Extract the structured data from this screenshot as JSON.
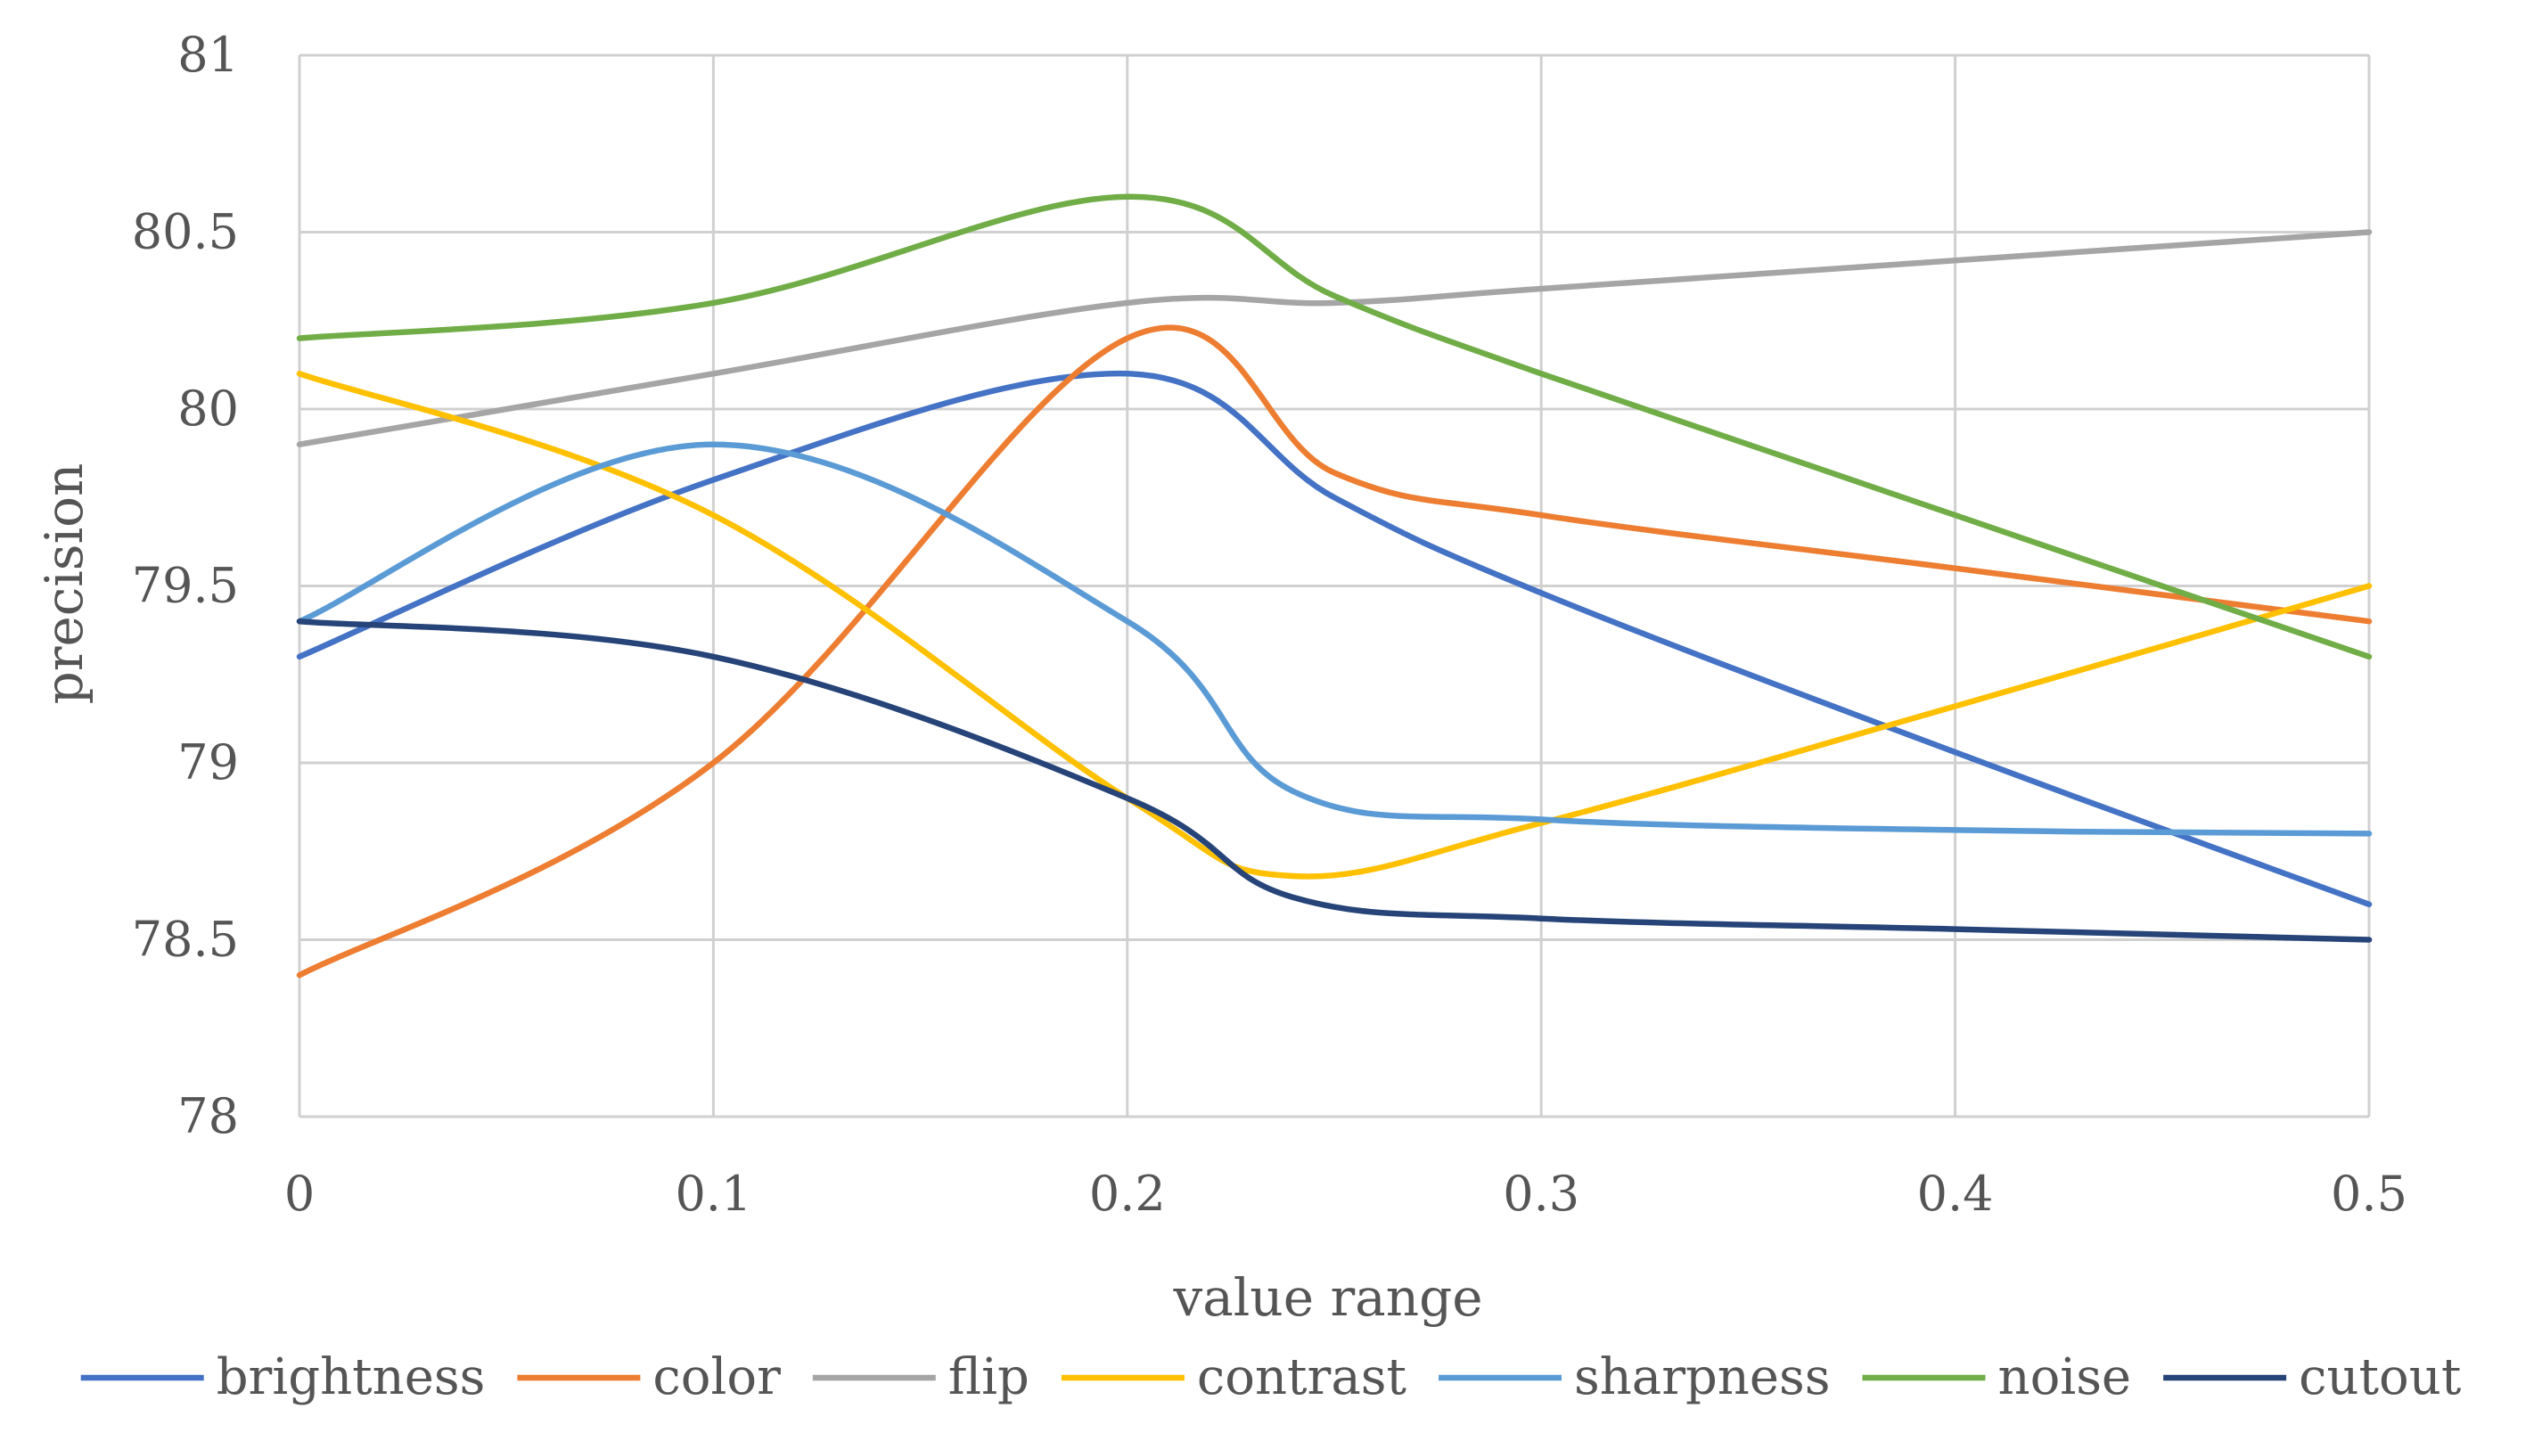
{
  "chart_data": {
    "type": "line",
    "title": "",
    "xlabel": "value range",
    "ylabel": "precision",
    "x": [
      0,
      0.1,
      0.2,
      0.3,
      0.4,
      0.5
    ],
    "x_tick_labels": [
      "0",
      "0.1",
      "0.2",
      "0.3",
      "0.4",
      "0.5"
    ],
    "y_tick_labels": [
      "78",
      "78.5",
      "79",
      "79.5",
      "80",
      "80.5",
      "81"
    ],
    "y_ticks": [
      78,
      78.5,
      79,
      79.5,
      80,
      80.5,
      81
    ],
    "xlim": [
      0,
      0.5
    ],
    "ylim": [
      78,
      81
    ],
    "grid": true,
    "legend_position": "bottom",
    "series": [
      {
        "name": "brightness",
        "color": "#4472C4",
        "values": [
          [
            0,
            79.3
          ],
          [
            0.1,
            79.8
          ],
          [
            0.2,
            80.1
          ],
          [
            0.25,
            79.75
          ],
          [
            0.3,
            79.48
          ],
          [
            0.4,
            79.03
          ],
          [
            0.5,
            78.6
          ]
        ]
      },
      {
        "name": "color",
        "color": "#ED7D31",
        "values": [
          [
            0,
            78.4
          ],
          [
            0.1,
            79.0
          ],
          [
            0.2,
            80.2
          ],
          [
            0.25,
            79.82
          ],
          [
            0.3,
            79.7
          ],
          [
            0.4,
            79.55
          ],
          [
            0.5,
            79.4
          ]
        ]
      },
      {
        "name": "flip",
        "color": "#A5A5A5",
        "values": [
          [
            0,
            79.9
          ],
          [
            0.1,
            80.1
          ],
          [
            0.2,
            80.3
          ],
          [
            0.25,
            80.3
          ],
          [
            0.3,
            80.34
          ],
          [
            0.4,
            80.42
          ],
          [
            0.5,
            80.5
          ]
        ]
      },
      {
        "name": "contrast",
        "color": "#FFC000",
        "values": [
          [
            0,
            80.1
          ],
          [
            0.1,
            79.7
          ],
          [
            0.2,
            78.9
          ],
          [
            0.24,
            78.68
          ],
          [
            0.3,
            78.83
          ],
          [
            0.4,
            79.16
          ],
          [
            0.5,
            79.5
          ]
        ]
      },
      {
        "name": "sharpness",
        "color": "#5B9BD5",
        "values": [
          [
            0,
            79.4
          ],
          [
            0.1,
            79.9
          ],
          [
            0.2,
            79.4
          ],
          [
            0.24,
            78.92
          ],
          [
            0.3,
            78.84
          ],
          [
            0.4,
            78.81
          ],
          [
            0.5,
            78.8
          ]
        ]
      },
      {
        "name": "noise",
        "color": "#70AD47",
        "values": [
          [
            0,
            80.2
          ],
          [
            0.1,
            80.3
          ],
          [
            0.2,
            80.6
          ],
          [
            0.25,
            80.32
          ],
          [
            0.3,
            80.1
          ],
          [
            0.4,
            79.7
          ],
          [
            0.5,
            79.3
          ]
        ]
      },
      {
        "name": "cutout",
        "color": "#264478",
        "values": [
          [
            0,
            79.4
          ],
          [
            0.1,
            79.3
          ],
          [
            0.2,
            78.9
          ],
          [
            0.24,
            78.62
          ],
          [
            0.3,
            78.56
          ],
          [
            0.4,
            78.53
          ],
          [
            0.5,
            78.5
          ]
        ]
      }
    ]
  }
}
